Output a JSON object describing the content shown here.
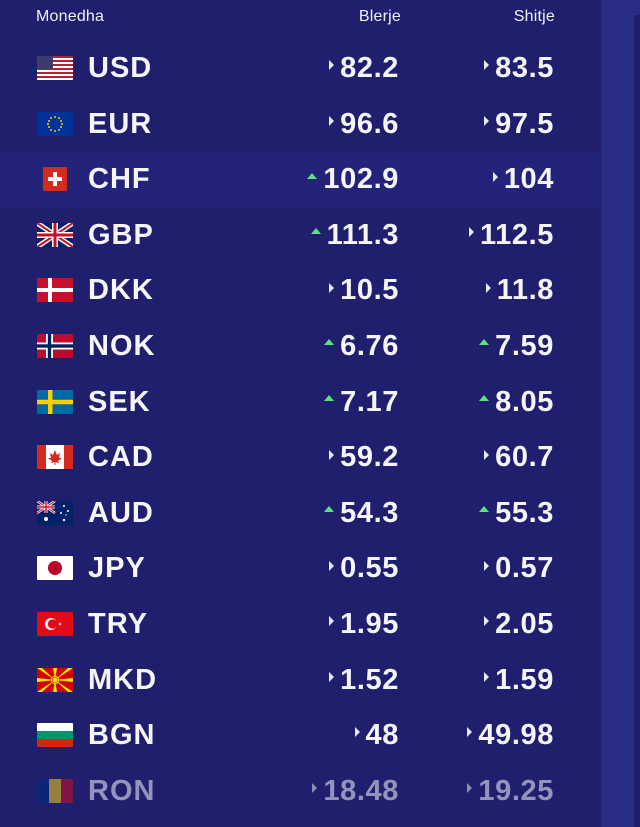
{
  "colors": {
    "background": "#1f1f6e",
    "text": "#f5f5fb",
    "up_arrow": "#5be27f",
    "neutral_arrow": "#e8e8f3",
    "selected_row": "#23237a"
  },
  "table": {
    "headers": {
      "currency": "Monedha",
      "buy": "Blerje",
      "sell": "Shitje"
    },
    "rows": [
      {
        "code": "USD",
        "flag": "usa-flag-icon",
        "buy": "82.2",
        "sell": "83.5",
        "buy_trend": "right",
        "sell_trend": "right"
      },
      {
        "code": "EUR",
        "flag": "eu-flag-icon",
        "buy": "96.6",
        "sell": "97.5",
        "buy_trend": "right",
        "sell_trend": "right"
      },
      {
        "code": "CHF",
        "flag": "switzerland-flag-icon",
        "buy": "102.9",
        "sell": "104",
        "buy_trend": "up",
        "sell_trend": "right"
      },
      {
        "code": "GBP",
        "flag": "uk-flag-icon",
        "buy": "111.3",
        "sell": "112.5",
        "buy_trend": "up",
        "sell_trend": "right"
      },
      {
        "code": "DKK",
        "flag": "denmark-flag-icon",
        "buy": "10.5",
        "sell": "11.8",
        "buy_trend": "right",
        "sell_trend": "right"
      },
      {
        "code": "NOK",
        "flag": "norway-flag-icon",
        "buy": "6.76",
        "sell": "7.59",
        "buy_trend": "up",
        "sell_trend": "up"
      },
      {
        "code": "SEK",
        "flag": "sweden-flag-icon",
        "buy": "7.17",
        "sell": "8.05",
        "buy_trend": "up",
        "sell_trend": "up"
      },
      {
        "code": "CAD",
        "flag": "canada-flag-icon",
        "buy": "59.2",
        "sell": "60.7",
        "buy_trend": "right",
        "sell_trend": "right"
      },
      {
        "code": "AUD",
        "flag": "australia-flag-icon",
        "buy": "54.3",
        "sell": "55.3",
        "buy_trend": "up",
        "sell_trend": "up"
      },
      {
        "code": "JPY",
        "flag": "japan-flag-icon",
        "buy": "0.55",
        "sell": "0.57",
        "buy_trend": "right",
        "sell_trend": "right"
      },
      {
        "code": "TRY",
        "flag": "turkey-flag-icon",
        "buy": "1.95",
        "sell": "2.05",
        "buy_trend": "right",
        "sell_trend": "right"
      },
      {
        "code": "MKD",
        "flag": "north-macedonia-flag-icon",
        "buy": "1.52",
        "sell": "1.59",
        "buy_trend": "right",
        "sell_trend": "right"
      },
      {
        "code": "BGN",
        "flag": "bulgaria-flag-icon",
        "buy": "48",
        "sell": "49.98",
        "buy_trend": "right",
        "sell_trend": "right"
      },
      {
        "code": "RON",
        "flag": "romania-flag-icon",
        "buy": "18.48",
        "sell": "19.25",
        "buy_trend": "right",
        "sell_trend": "right"
      }
    ]
  }
}
